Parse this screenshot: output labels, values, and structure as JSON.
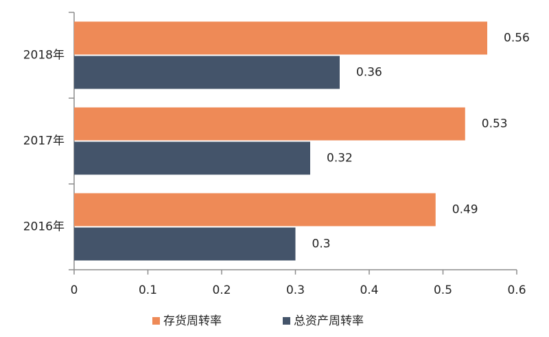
{
  "chart_data": {
    "type": "hbar",
    "categories": [
      "2018年",
      "2017年",
      "2016年"
    ],
    "series": [
      {
        "name": "存货周转率",
        "color": "#ee8a57",
        "values": [
          0.56,
          0.53,
          0.49
        ]
      },
      {
        "name": "总资产周转率",
        "color": "#44546a",
        "values": [
          0.36,
          0.32,
          0.3
        ]
      }
    ],
    "xlim": [
      0,
      0.6
    ],
    "xticks": [
      0,
      0.1,
      0.2,
      0.3,
      0.4,
      0.5,
      0.6
    ],
    "grid": false,
    "legend": "bottom"
  }
}
